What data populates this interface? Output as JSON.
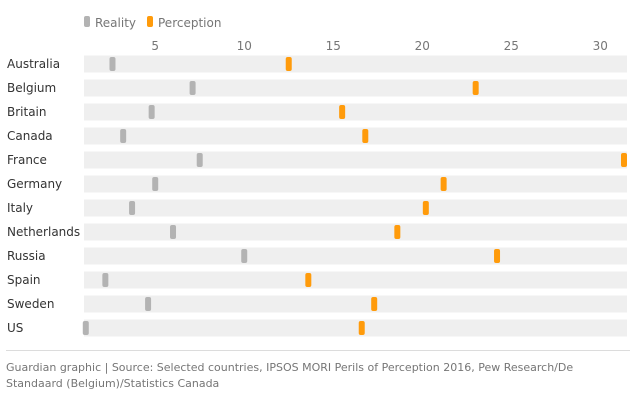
{
  "chart_data": {
    "type": "dot-plot",
    "legend": [
      {
        "name": "Reality",
        "color": "#b3b3b3"
      },
      {
        "name": "Perception",
        "color": "#ff9b0b"
      }
    ],
    "xticks": [
      5,
      10,
      15,
      20,
      25,
      30
    ],
    "xlim": [
      1,
      31.5
    ],
    "categories": [
      "Australia",
      "Belgium",
      "Britain",
      "Canada",
      "France",
      "Germany",
      "Italy",
      "Netherlands",
      "Russia",
      "Spain",
      "Sweden",
      "US"
    ],
    "series": [
      {
        "name": "Reality",
        "values": [
          2.6,
          7.1,
          4.8,
          3.2,
          7.5,
          5.0,
          3.7,
          6.0,
          10.0,
          2.2,
          4.6,
          1.1
        ]
      },
      {
        "name": "Perception",
        "values": [
          12.5,
          23.0,
          15.5,
          16.8,
          31.4,
          21.2,
          20.2,
          18.6,
          24.2,
          13.6,
          17.3,
          16.6
        ]
      }
    ],
    "grid": false,
    "legend_placement": "top-left"
  },
  "footer": {
    "source": "Guardian graphic | Source: Selected countries, IPSOS MORI Perils of Perception 2016, Pew Research/De Standaard (Belgium)/Statistics Canada"
  }
}
